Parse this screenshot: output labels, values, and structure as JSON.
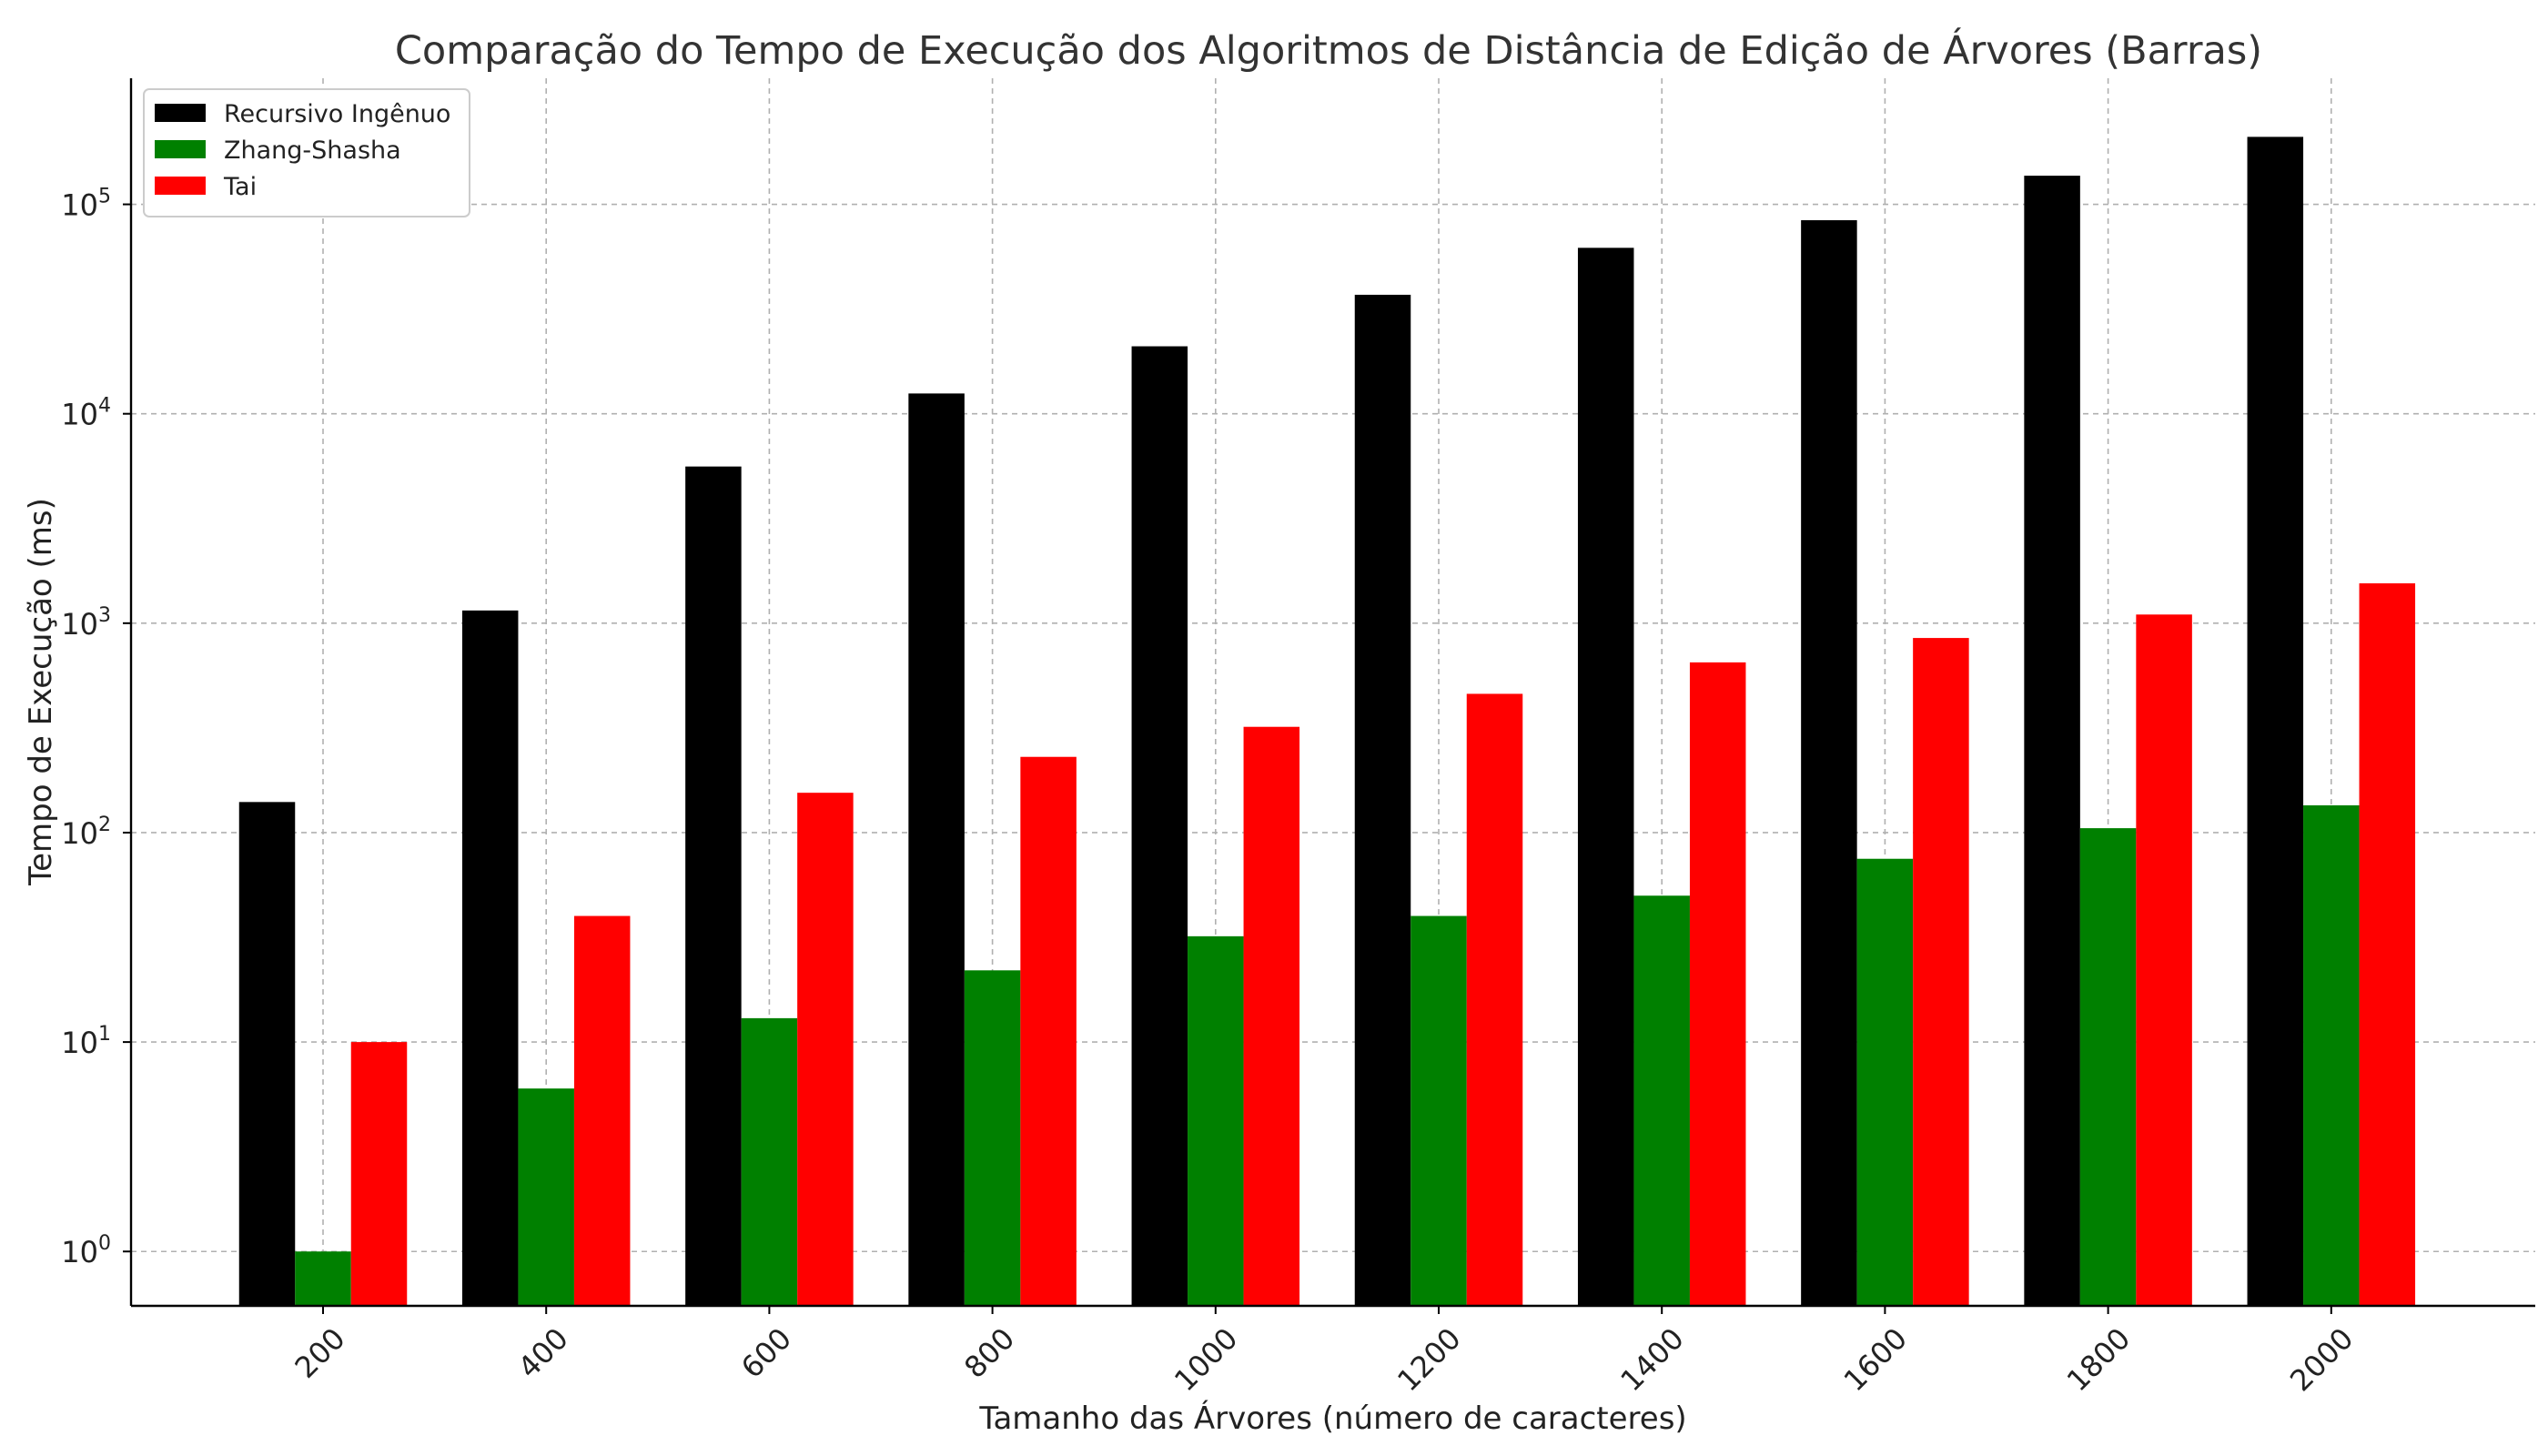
{
  "chart_data": {
    "type": "bar",
    "title": "Comparação do Tempo de Execução dos Algoritmos de Distância de Edição de Árvores (Barras)",
    "xlabel": "Tamanho das Árvores (número de caracteres)",
    "ylabel": "Tempo de Execução (ms)",
    "yscale": "log",
    "ylim": [
      0.55,
      400000
    ],
    "yticks": [
      {
        "value": 1,
        "base": "10",
        "exp": "0"
      },
      {
        "value": 10,
        "base": "10",
        "exp": "1"
      },
      {
        "value": 100,
        "base": "10",
        "exp": "2"
      },
      {
        "value": 1000,
        "base": "10",
        "exp": "3"
      },
      {
        "value": 10000,
        "base": "10",
        "exp": "4"
      },
      {
        "value": 100000,
        "base": "10",
        "exp": "5"
      }
    ],
    "categories": [
      "200",
      "400",
      "600",
      "800",
      "1000",
      "1200",
      "1400",
      "1600",
      "1800",
      "2000"
    ],
    "series": [
      {
        "name": "Recursivo Ingênuo",
        "color": "#000000",
        "values": [
          140,
          1150,
          5600,
          12500,
          21000,
          37000,
          62000,
          84000,
          137000,
          210000
        ]
      },
      {
        "name": "Zhang-Shasha",
        "color": "#008000",
        "values": [
          1,
          6,
          13,
          22,
          32,
          40,
          50,
          75,
          105,
          135
        ]
      },
      {
        "name": "Tai",
        "color": "#ff0000",
        "values": [
          10,
          40,
          155,
          230,
          320,
          460,
          650,
          850,
          1100,
          1550
        ]
      }
    ],
    "grid": true,
    "legend_position": "top-left"
  }
}
